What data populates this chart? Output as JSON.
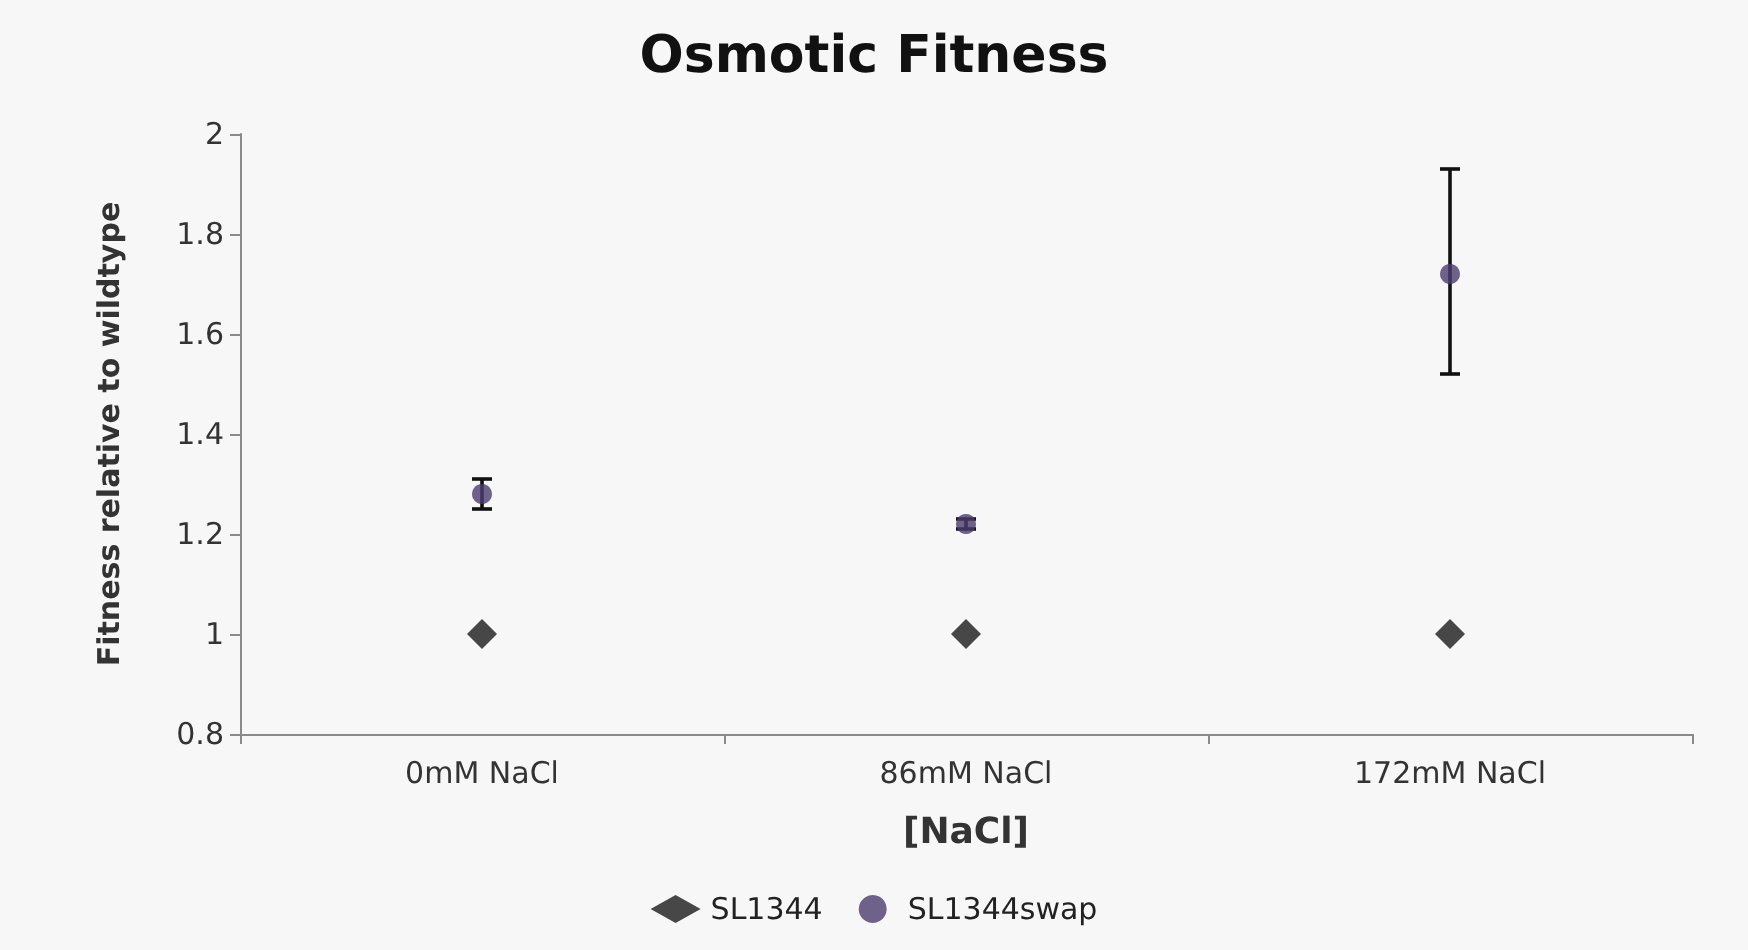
{
  "chart_data": {
    "type": "scatter",
    "title": "Osmotic Fitness",
    "xlabel": "[NaCl]",
    "ylabel": "Fitness relative to wildtype",
    "categories": [
      "0mM NaCl",
      "86mM NaCl",
      "172mM NaCl"
    ],
    "series": [
      {
        "name": "SL1344",
        "color": "#1a1a1a",
        "marker": "diamond",
        "values": [
          1,
          1,
          1
        ]
      },
      {
        "name": "SL1344swap",
        "color": "#4b3b6e",
        "marker": "circle",
        "values": [
          1.28,
          1.22,
          1.72
        ],
        "errors": [
          0.03,
          0.01,
          [
            1.52,
            1.93
          ]
        ]
      }
    ],
    "ylim": [
      0.8,
      2
    ],
    "yticks": [
      0.8,
      1,
      1.2,
      1.4,
      1.6,
      1.8,
      2
    ],
    "grid": false,
    "legend": "bottom"
  }
}
